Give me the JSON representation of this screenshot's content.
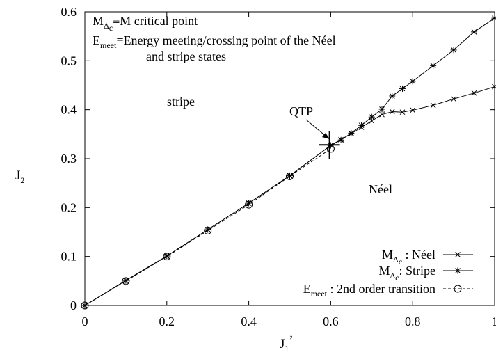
{
  "chart_data": {
    "type": "line",
    "xlabel": "J",
    "xlabel_sub": "1",
    "xlabel_prime": "’",
    "ylabel": "J",
    "ylabel_sub": "2",
    "xlim": [
      0,
      1
    ],
    "ylim": [
      0,
      0.6
    ],
    "xticks": [
      "0",
      "0.2",
      "0.4",
      "0.6",
      "0.8",
      "1"
    ],
    "yticks": [
      "0",
      "0.1",
      "0.2",
      "0.3",
      "0.4",
      "0.5",
      "0.6"
    ],
    "grid": false,
    "legend_position": "bottom-right",
    "annotations": {
      "line1_a": "M",
      "line1_sub": "Δ",
      "line1_subsub": "c",
      "line1_b": "≡M critical point",
      "line2_a": "E",
      "line2_sub": "meet",
      "line2_b": "≡Energy meeting/crossing point of the Néel",
      "line3": "and stripe states",
      "stripe_label": "stripe",
      "neel_label": "Néel",
      "qtp_label": "QTP",
      "qtp_point": [
        0.597,
        0.328
      ]
    },
    "series": [
      {
        "legend_a": "M",
        "legend_sub": "Δ",
        "legend_subsub": "c",
        "legend_b": " : Néel",
        "marker": "x",
        "x": [
          0,
          0.1,
          0.2,
          0.3,
          0.4,
          0.5,
          0.6,
          0.625,
          0.65,
          0.675,
          0.7,
          0.725,
          0.75,
          0.775,
          0.8,
          0.85,
          0.9,
          0.95,
          1.0
        ],
        "y": [
          0,
          0.051,
          0.101,
          0.155,
          0.209,
          0.265,
          0.327,
          0.339,
          0.351,
          0.364,
          0.377,
          0.39,
          0.396,
          0.395,
          0.399,
          0.409,
          0.422,
          0.434,
          0.447
        ]
      },
      {
        "legend_a": "M",
        "legend_sub": "Δ",
        "legend_subsub": "c",
        "legend_b": ": Stripe",
        "marker": "asterisk",
        "x": [
          0,
          0.1,
          0.2,
          0.3,
          0.4,
          0.5,
          0.6,
          0.625,
          0.65,
          0.675,
          0.7,
          0.725,
          0.75,
          0.775,
          0.8,
          0.85,
          0.9,
          0.95,
          1.0
        ],
        "y": [
          0,
          0.051,
          0.101,
          0.155,
          0.209,
          0.265,
          0.327,
          0.338,
          0.352,
          0.368,
          0.385,
          0.401,
          0.428,
          0.443,
          0.458,
          0.49,
          0.522,
          0.559,
          0.587
        ]
      },
      {
        "legend_a": "E",
        "legend_sub": "meet",
        "legend_b": " : 2nd order transition",
        "marker": "circle",
        "dashed": true,
        "x": [
          0,
          0.1,
          0.2,
          0.3,
          0.4,
          0.5,
          0.6
        ],
        "y": [
          0,
          0.05,
          0.1,
          0.153,
          0.206,
          0.264,
          0.32
        ]
      }
    ]
  }
}
